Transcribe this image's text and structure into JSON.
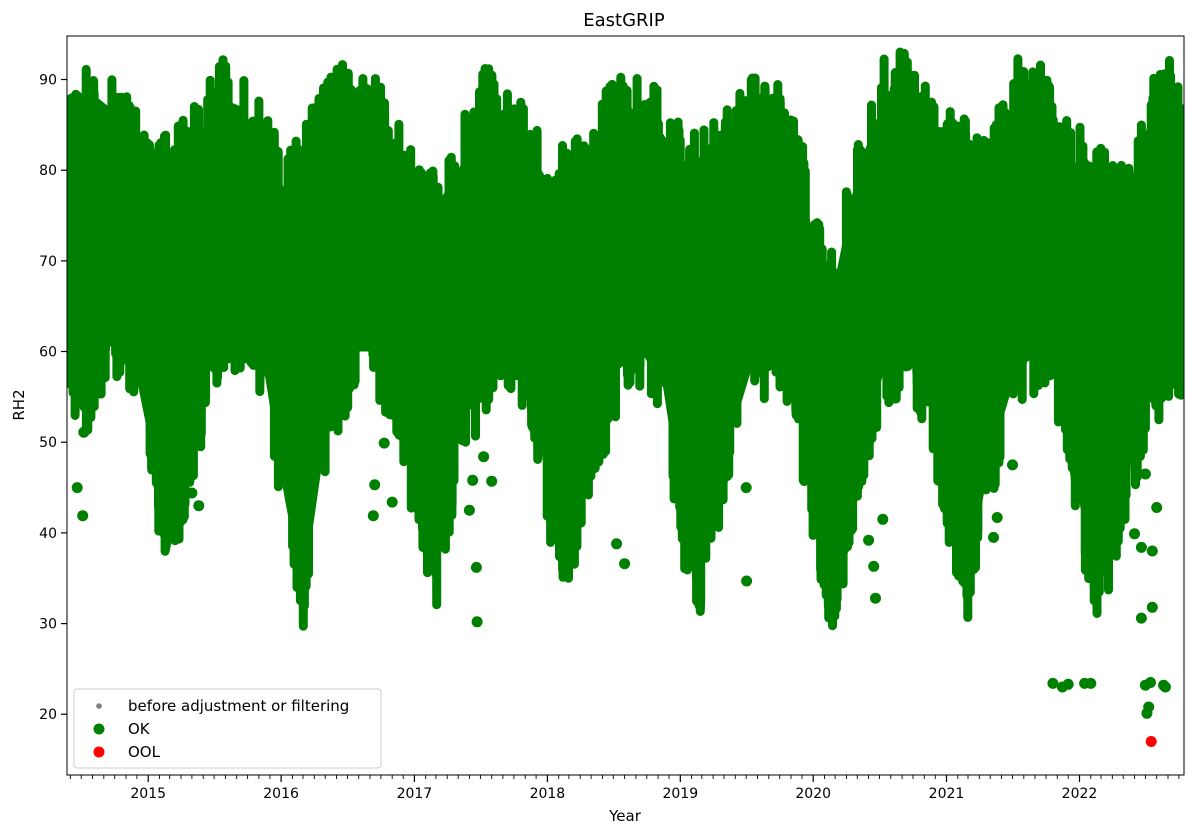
{
  "chart_data": {
    "type": "scatter",
    "title": "EastGRIP",
    "xlabel": "Year",
    "ylabel": "RH2",
    "xlim": [
      "2014-05-23",
      "2022-10-15"
    ],
    "ylim": [
      13.3,
      94.8
    ],
    "x_ticks": [
      "2015",
      "2016",
      "2017",
      "2018",
      "2019",
      "2020",
      "2021",
      "2022"
    ],
    "y_ticks": [
      "20",
      "30",
      "40",
      "50",
      "60",
      "70",
      "80",
      "90"
    ],
    "grid": false,
    "legend_placement": "lower-left",
    "legend": [
      {
        "label": "before adjustment or filtering",
        "color": "#808080",
        "marker": "small-dot"
      },
      {
        "label": "OK",
        "color": "#008000",
        "marker": "dot"
      },
      {
        "label": "OOL",
        "color": "#ff0000",
        "marker": "dot"
      }
    ],
    "series": [
      {
        "name": "OK",
        "color": "#008000",
        "envelope": {
          "x": [
            "2014-05-23",
            "2014-07-15",
            "2014-09-15",
            "2014-11-15",
            "2015-01-15",
            "2015-03-01",
            "2015-05-01",
            "2015-07-15",
            "2015-09-15",
            "2015-11-15",
            "2016-01-10",
            "2016-03-01",
            "2016-05-01",
            "2016-07-15",
            "2016-09-15",
            "2016-11-15",
            "2017-01-15",
            "2017-03-01",
            "2017-05-01",
            "2017-07-15",
            "2017-09-15",
            "2017-11-15",
            "2018-01-15",
            "2018-03-01",
            "2018-05-01",
            "2018-07-15",
            "2018-09-15",
            "2018-11-15",
            "2019-01-15",
            "2019-03-01",
            "2019-05-01",
            "2019-07-15",
            "2019-09-15",
            "2019-11-15",
            "2020-01-15",
            "2020-03-01",
            "2020-05-01",
            "2020-07-15",
            "2020-09-15",
            "2020-11-15",
            "2021-01-15",
            "2021-03-01",
            "2021-05-01",
            "2021-07-15",
            "2021-09-15",
            "2021-11-15",
            "2022-01-15",
            "2022-03-01",
            "2022-05-01",
            "2022-07-15",
            "2022-09-15",
            "2022-10-15"
          ],
          "upper": [
            82,
            89,
            87,
            83,
            80,
            80,
            82,
            88,
            87,
            82,
            78,
            80,
            86,
            88,
            86,
            82,
            76,
            76,
            80,
            87,
            85,
            82,
            78,
            79,
            80,
            88,
            86,
            84,
            80,
            80,
            82,
            86,
            86,
            82,
            70,
            68,
            80,
            88,
            89,
            84,
            82,
            81,
            80,
            88,
            88,
            82,
            80,
            78,
            76,
            86,
            88,
            83
          ],
          "lower": [
            58,
            55,
            62,
            60,
            48,
            38,
            50,
            62,
            62,
            58,
            44,
            33,
            50,
            60,
            60,
            55,
            42,
            36,
            50,
            58,
            60,
            56,
            42,
            38,
            48,
            58,
            60,
            56,
            40,
            35,
            48,
            58,
            60,
            56,
            38,
            33,
            48,
            58,
            60,
            55,
            42,
            35,
            48,
            58,
            60,
            55,
            40,
            34,
            45,
            55,
            60,
            58
          ]
        },
        "points": [
          {
            "x": "2014-06-20",
            "y": 45.0
          },
          {
            "x": "2014-07-05",
            "y": 41.9
          },
          {
            "x": "2014-07-08",
            "y": 51.1
          },
          {
            "x": "2015-05-01",
            "y": 44.4
          },
          {
            "x": "2015-05-20",
            "y": 43.0
          },
          {
            "x": "2016-09-10",
            "y": 41.9
          },
          {
            "x": "2016-09-14",
            "y": 45.3
          },
          {
            "x": "2016-10-10",
            "y": 49.9
          },
          {
            "x": "2016-11-01",
            "y": 43.4
          },
          {
            "x": "2017-06-01",
            "y": 42.5
          },
          {
            "x": "2017-06-10",
            "y": 45.8
          },
          {
            "x": "2017-06-20",
            "y": 36.2
          },
          {
            "x": "2017-06-22",
            "y": 30.2
          },
          {
            "x": "2017-07-10",
            "y": 48.4
          },
          {
            "x": "2017-08-01",
            "y": 45.7
          },
          {
            "x": "2018-07-10",
            "y": 38.8
          },
          {
            "x": "2018-08-01",
            "y": 36.6
          },
          {
            "x": "2019-07-01",
            "y": 45.0
          },
          {
            "x": "2019-07-02",
            "y": 34.7
          },
          {
            "x": "2020-06-01",
            "y": 39.2
          },
          {
            "x": "2020-06-15",
            "y": 36.3
          },
          {
            "x": "2020-06-20",
            "y": 32.8
          },
          {
            "x": "2020-07-10",
            "y": 41.5
          },
          {
            "x": "2021-05-20",
            "y": 41.7
          },
          {
            "x": "2021-05-10",
            "y": 39.5
          },
          {
            "x": "2021-07-01",
            "y": 47.5
          },
          {
            "x": "2021-10-20",
            "y": 23.4
          },
          {
            "x": "2021-11-15",
            "y": 23.0
          },
          {
            "x": "2021-12-01",
            "y": 23.3
          },
          {
            "x": "2022-01-15",
            "y": 23.4
          },
          {
            "x": "2022-02-01",
            "y": 23.4
          },
          {
            "x": "2022-03-01",
            "y": 43.3
          },
          {
            "x": "2022-06-01",
            "y": 39.9
          },
          {
            "x": "2022-06-20",
            "y": 38.4
          },
          {
            "x": "2022-06-20",
            "y": 30.6
          },
          {
            "x": "2022-07-01",
            "y": 23.2
          },
          {
            "x": "2022-07-05",
            "y": 20.1
          },
          {
            "x": "2022-07-10",
            "y": 20.8
          },
          {
            "x": "2022-07-15",
            "y": 23.5
          },
          {
            "x": "2022-07-20",
            "y": 31.8
          },
          {
            "x": "2022-07-20",
            "y": 38.0
          },
          {
            "x": "2022-08-20",
            "y": 23.2
          },
          {
            "x": "2022-08-25",
            "y": 23.0
          },
          {
            "x": "2022-08-01",
            "y": 42.8
          },
          {
            "x": "2022-07-01",
            "y": 46.5
          }
        ]
      },
      {
        "name": "OOL",
        "color": "#ff0000",
        "points": [
          {
            "x": "2022-07-17",
            "y": 17.0
          }
        ]
      }
    ]
  }
}
